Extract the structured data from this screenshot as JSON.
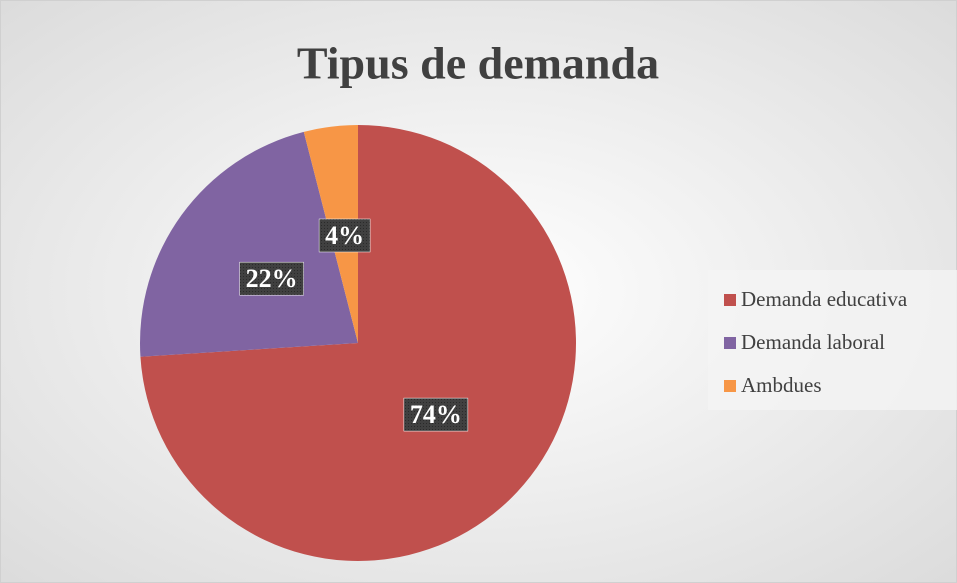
{
  "chart_data": {
    "type": "pie",
    "title": "Tipus de demanda",
    "categories": [
      "Demanda educativa",
      "Demanda laboral",
      "Ambdues"
    ],
    "values": [
      74,
      22,
      4
    ],
    "value_labels": [
      "74%",
      "22%",
      "4%"
    ],
    "colors": [
      "#c0504d",
      "#8064a2",
      "#f79646"
    ],
    "legend": "right"
  }
}
